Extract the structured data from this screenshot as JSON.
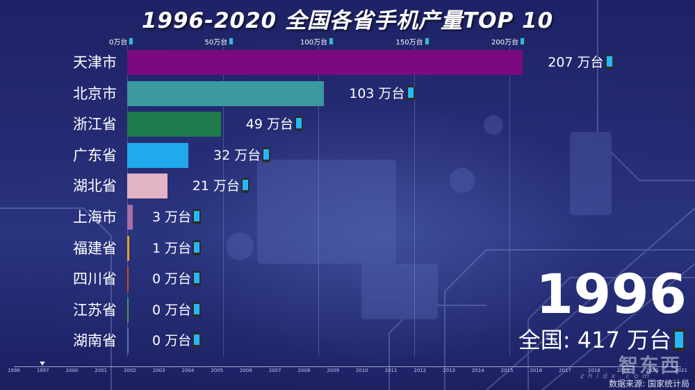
{
  "title": "1996-2020 全国各省手机产量TOP 10",
  "unit": "万台",
  "colors": {
    "background": "#1e2266",
    "text": "#ffffff",
    "phone_screen": "#29b6f6"
  },
  "axis": {
    "ticks": [
      {
        "label": "0 万台",
        "value": 0
      },
      {
        "label": "50 万台",
        "value": 50
      },
      {
        "label": "100 万台",
        "value": 100
      },
      {
        "label": "150 万台",
        "value": 150
      },
      {
        "label": "200 万台",
        "value": 200
      }
    ]
  },
  "rows": [
    {
      "label": "天津市",
      "value_text": "207 万台",
      "value": 207,
      "color": "#7b0a80"
    },
    {
      "label": "北京市",
      "value_text": "103 万台",
      "value": 103,
      "color": "#3a9a9e"
    },
    {
      "label": "浙江省",
      "value_text": "49 万台",
      "value": 49,
      "color": "#1c7a4c"
    },
    {
      "label": "广东省",
      "value_text": "32 万台",
      "value": 32,
      "color": "#22a8ec"
    },
    {
      "label": "湖北省",
      "value_text": "21 万台",
      "value": 21,
      "color": "#e3b3c6"
    },
    {
      "label": "上海市",
      "value_text": "3 万台",
      "value": 3,
      "color": "#a86fa0"
    },
    {
      "label": "福建省",
      "value_text": "1 万台",
      "value": 1,
      "color": "#e8a020"
    },
    {
      "label": "四川省",
      "value_text": "0 万台",
      "value": 0,
      "color": "#c8501c"
    },
    {
      "label": "江苏省",
      "value_text": "0 万台",
      "value": 0,
      "color": "#3aa050"
    },
    {
      "label": "湖南省",
      "value_text": "0 万台",
      "value": 0,
      "color": "#4a7ab0"
    }
  ],
  "current_year": "1996",
  "total": {
    "label": "全国: 417 万台",
    "value": 417
  },
  "timeline": {
    "labels": [
      "1996",
      "1997",
      "2000",
      "2001",
      "2002",
      "2003",
      "2004",
      "2005",
      "2006",
      "2007",
      "2008",
      "2009",
      "2010",
      "2011",
      "2012",
      "2013",
      "2014",
      "2015",
      "2016",
      "2017",
      "2018",
      "2019",
      "2020",
      "2021"
    ],
    "current": "1996"
  },
  "source": "数据来源:  国家统计局",
  "watermark": {
    "text": "智东西",
    "sub": "zhidx.com"
  },
  "chart_data": {
    "type": "bar",
    "orientation": "horizontal",
    "title": "1996-2020 全国各省手机产量TOP 10",
    "subtitle": "1996",
    "xlabel": "万台",
    "ylabel": "",
    "xlim": [
      0,
      210
    ],
    "xticks": [
      0,
      50,
      100,
      150,
      200
    ],
    "grid": true,
    "categories": [
      "天津市",
      "北京市",
      "浙江省",
      "广东省",
      "湖北省",
      "上海市",
      "福建省",
      "四川省",
      "江苏省",
      "湖南省"
    ],
    "values": [
      207,
      103,
      49,
      32,
      21,
      3,
      1,
      0,
      0,
      0
    ],
    "annotations": [
      "1996",
      "全国: 417 万台",
      "数据来源: 国家统计局"
    ]
  }
}
